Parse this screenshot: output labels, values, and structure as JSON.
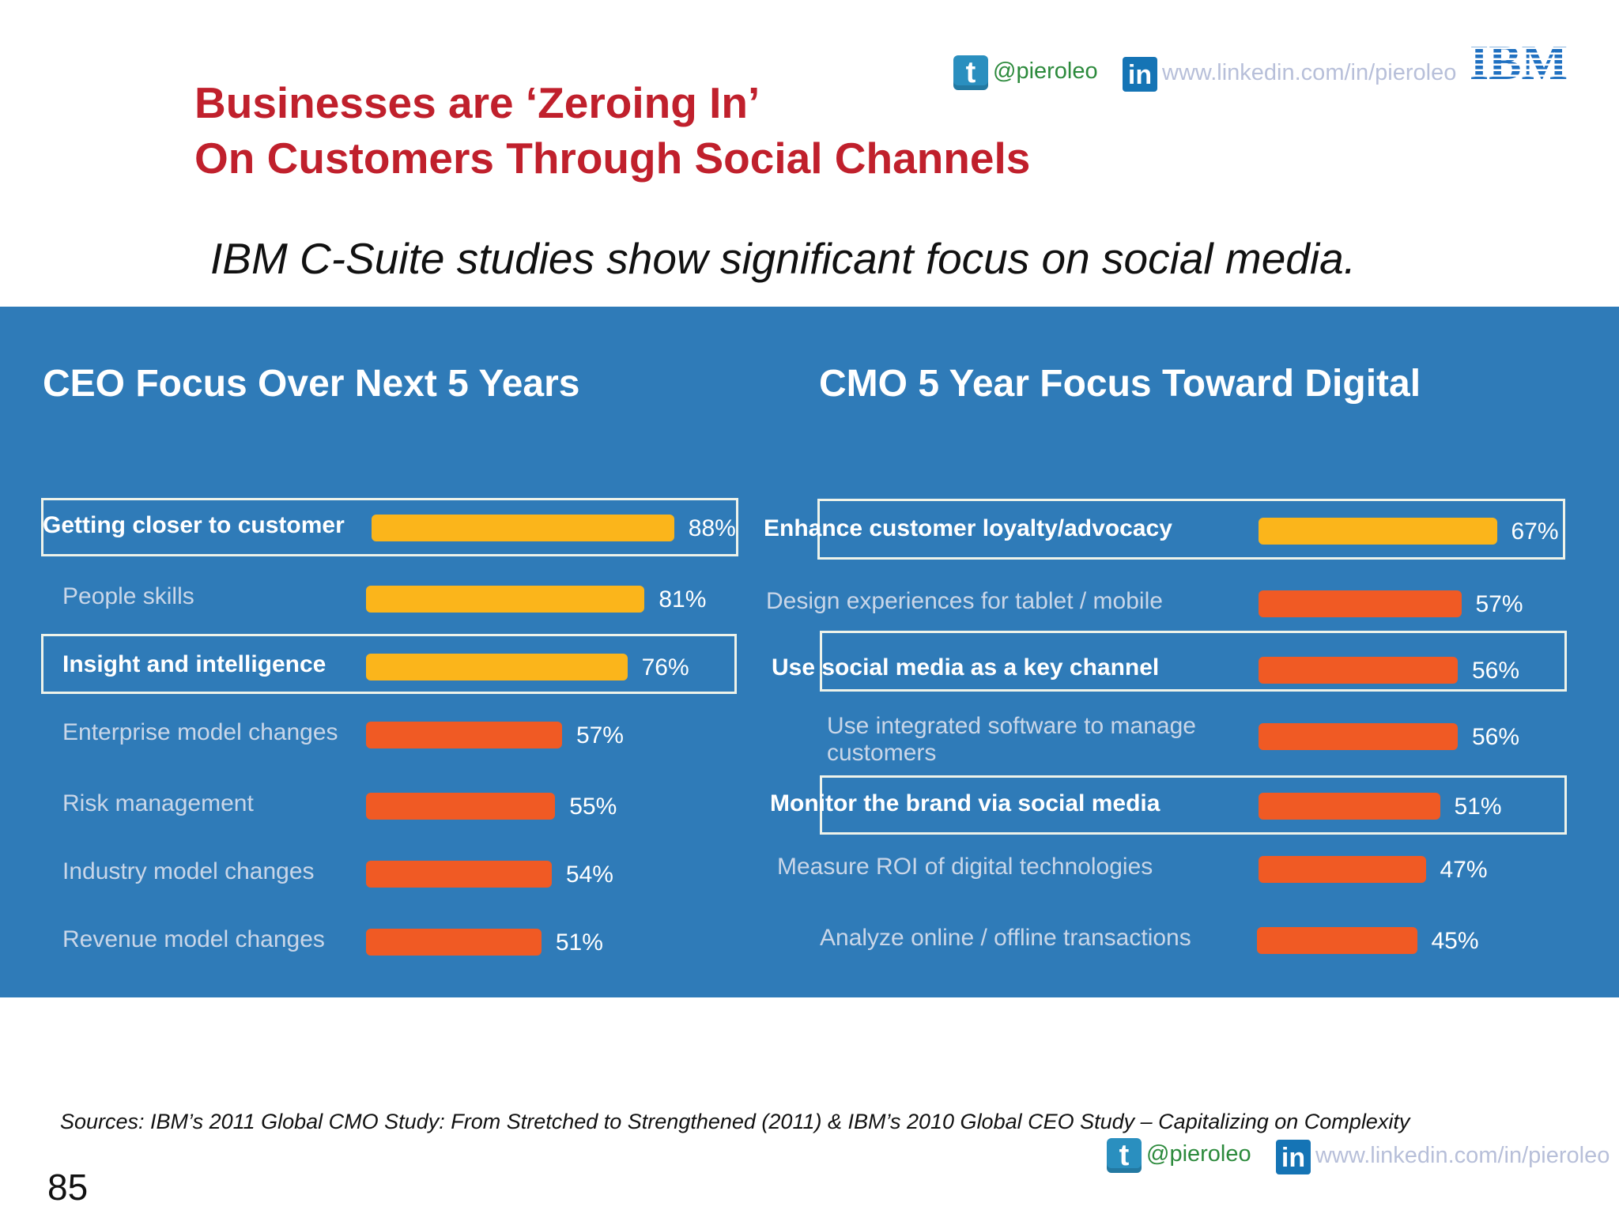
{
  "header": {
    "title_line1": "Businesses are ‘Zeroing In’",
    "title_line2": "On Customers Through Social Channels",
    "subtitle": "IBM C-Suite studies show significant focus on social media.",
    "twitter_handle": "@pieroleo",
    "linkedin_url": "www.linkedin.com/in/pieroleo",
    "logo_text": "IBM"
  },
  "colors": {
    "panel": "#2f7bb8",
    "highlight_bar": "#fbb51b",
    "normal_bar": "#f05a24",
    "title": "#c0202c"
  },
  "chart_data": [
    {
      "type": "bar",
      "orientation": "horizontal",
      "title": "CEO Focus Over Next 5 Years",
      "unit": "%",
      "categories": [
        "Getting closer to customer",
        "People skills",
        "Insight and intelligence",
        "Enterprise model changes",
        "Risk management",
        "Industry model changes",
        "Revenue model changes"
      ],
      "values": [
        88,
        81,
        76,
        57,
        55,
        54,
        51
      ],
      "labels": [
        "88%",
        "81%",
        "76%",
        "57%",
        "55%",
        "54%",
        "51%"
      ],
      "bar_colors": [
        "yellow",
        "yellow",
        "yellow",
        "orange",
        "orange",
        "orange",
        "orange"
      ],
      "highlighted": [
        true,
        false,
        true,
        false,
        false,
        false,
        false
      ]
    },
    {
      "type": "bar",
      "orientation": "horizontal",
      "title": "CMO 5 Year Focus Toward Digital",
      "unit": "%",
      "categories": [
        "Enhance customer loyalty/advocacy",
        "Design experiences for tablet / mobile",
        "Use social media as a key channel",
        "Use integrated software to manage customers",
        "Monitor the brand via social media",
        "Measure ROI of digital technologies",
        "Analyze online / offline transactions"
      ],
      "values": [
        67,
        57,
        56,
        56,
        51,
        47,
        45
      ],
      "labels": [
        "67%",
        "57%",
        "56%",
        "56%",
        "51%",
        "47%",
        "45%"
      ],
      "bar_colors": [
        "yellow",
        "orange",
        "orange",
        "orange",
        "orange",
        "orange",
        "orange"
      ],
      "highlighted": [
        true,
        false,
        true,
        false,
        true,
        false,
        false
      ]
    }
  ],
  "footer": {
    "sources": "Sources: IBM’s 2011 Global CMO Study: From Stretched to Strengthened (2011) & IBM’s 2010 Global CEO Study – Capitalizing on Complexity",
    "twitter_handle": "@pieroleo",
    "linkedin_url": "www.linkedin.com/in/pieroleo",
    "page_number": "85"
  }
}
